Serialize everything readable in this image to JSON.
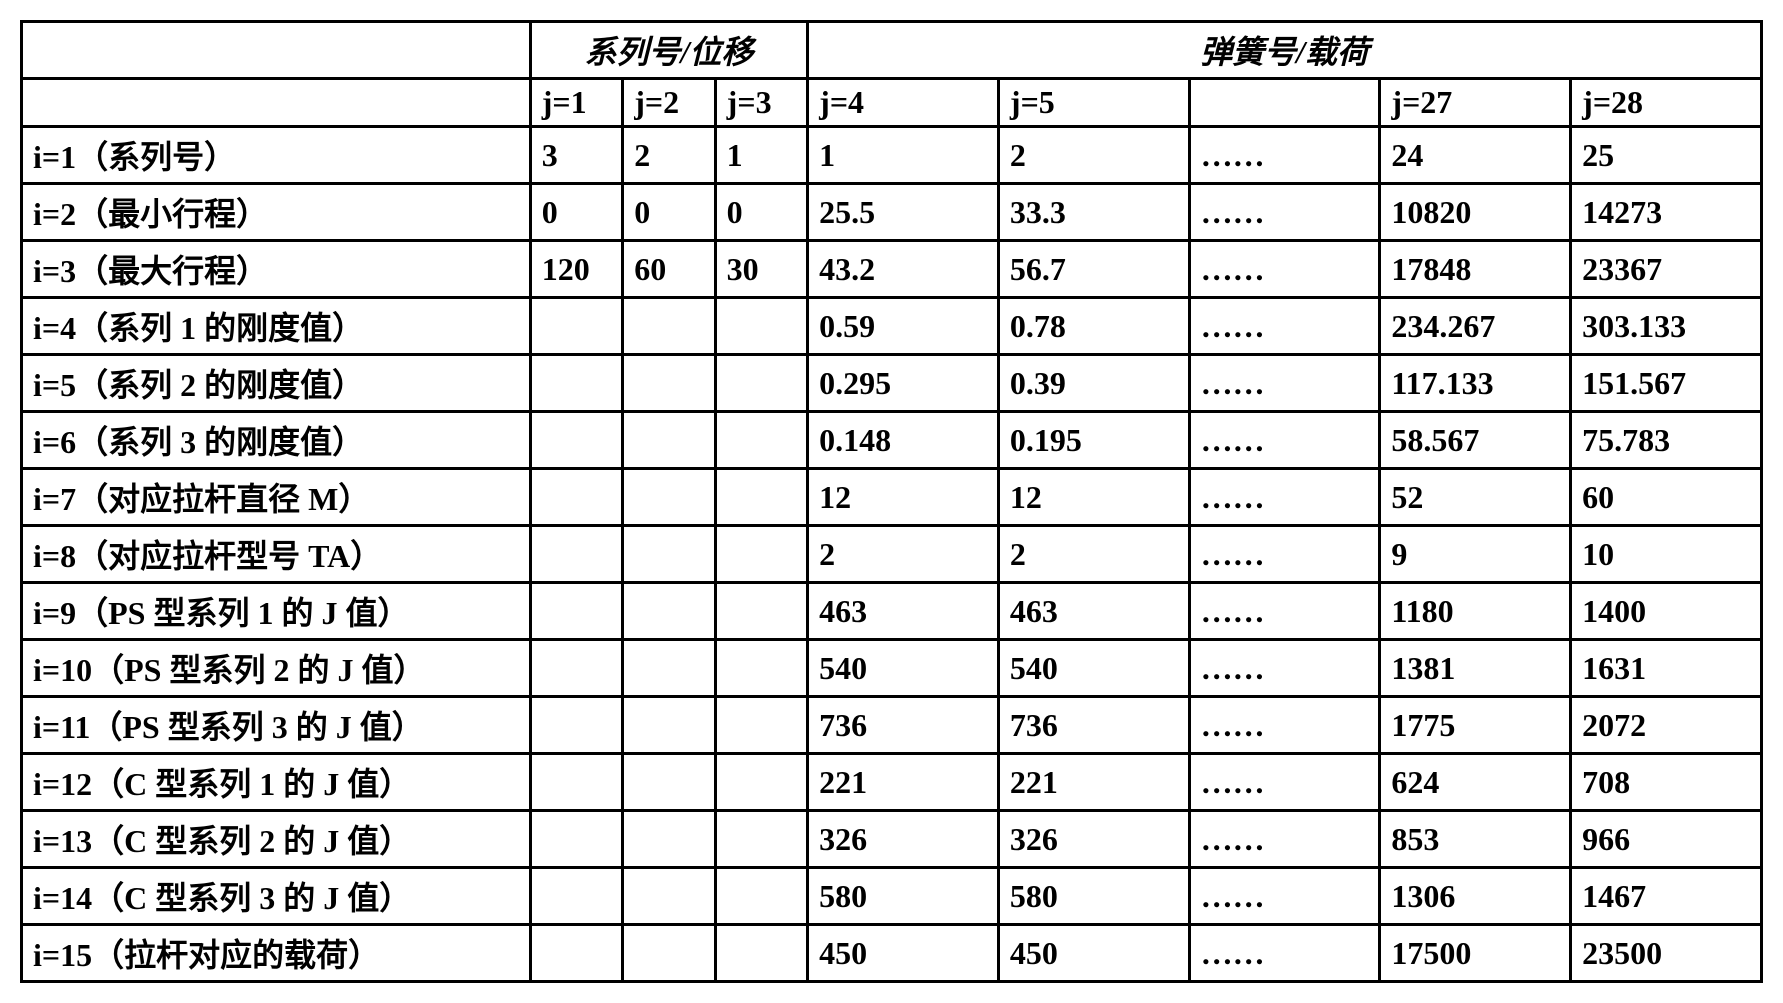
{
  "table": {
    "border_color": "#000000",
    "border_width": 3,
    "background_color": "#ffffff",
    "text_color": "#000000",
    "font_weight": "bold",
    "font_size": 32,
    "header_group_1": "系列号/位移",
    "header_group_2": "弹簧号/载荷",
    "col_headers": {
      "label": "",
      "j1": "j=1",
      "j2": "j=2",
      "j3": "j=3",
      "j4": "j=4",
      "j5": "j=5",
      "ellipsis": "",
      "j27": "j=27",
      "j28": "j=28"
    },
    "rows": [
      {
        "label": "i=1（系列号）",
        "j1": "3",
        "j2": "2",
        "j3": "1",
        "j4": "1",
        "j5": "2",
        "ellipsis": "……",
        "j27": "24",
        "j28": "25"
      },
      {
        "label": "i=2（最小行程）",
        "j1": "0",
        "j2": "0",
        "j3": "0",
        "j4": "25.5",
        "j5": "33.3",
        "ellipsis": "……",
        "j27": "10820",
        "j28": "14273"
      },
      {
        "label": "i=3（最大行程）",
        "j1": "120",
        "j2": "60",
        "j3": "30",
        "j4": "43.2",
        "j5": "56.7",
        "ellipsis": "……",
        "j27": "17848",
        "j28": "23367"
      },
      {
        "label": "i=4（系列 1 的刚度值）",
        "j1": "",
        "j2": "",
        "j3": "",
        "j4": "0.59",
        "j5": "0.78",
        "ellipsis": "……",
        "j27": "234.267",
        "j28": "303.133"
      },
      {
        "label": "i=5（系列 2 的刚度值）",
        "j1": "",
        "j2": "",
        "j3": "",
        "j4": "0.295",
        "j5": "0.39",
        "ellipsis": "……",
        "j27": "117.133",
        "j28": "151.567"
      },
      {
        "label": "i=6（系列 3 的刚度值）",
        "j1": "",
        "j2": "",
        "j3": "",
        "j4": "0.148",
        "j5": "0.195",
        "ellipsis": "……",
        "j27": "58.567",
        "j28": "75.783"
      },
      {
        "label": "i=7（对应拉杆直径 M）",
        "j1": "",
        "j2": "",
        "j3": "",
        "j4": "12",
        "j5": "12",
        "ellipsis": "……",
        "j27": "52",
        "j28": "60"
      },
      {
        "label": "i=8（对应拉杆型号 TA）",
        "j1": "",
        "j2": "",
        "j3": "",
        "j4": "2",
        "j5": "2",
        "ellipsis": "……",
        "j27": "9",
        "j28": "10"
      },
      {
        "label": "i=9（PS 型系列 1 的 J 值）",
        "j1": "",
        "j2": "",
        "j3": "",
        "j4": "463",
        "j5": "463",
        "ellipsis": "……",
        "j27": "1180",
        "j28": "1400"
      },
      {
        "label": "i=10（PS 型系列 2 的 J 值）",
        "j1": "",
        "j2": "",
        "j3": "",
        "j4": "540",
        "j5": "540",
        "ellipsis": "……",
        "j27": "1381",
        "j28": "1631"
      },
      {
        "label": "i=11（PS 型系列 3 的 J 值）",
        "j1": "",
        "j2": "",
        "j3": "",
        "j4": "736",
        "j5": "736",
        "ellipsis": "……",
        "j27": "1775",
        "j28": "2072"
      },
      {
        "label": "i=12（C 型系列 1 的 J 值）",
        "j1": "",
        "j2": "",
        "j3": "",
        "j4": "221",
        "j5": "221",
        "ellipsis": "……",
        "j27": "624",
        "j28": "708"
      },
      {
        "label": "i=13（C 型系列 2 的 J 值）",
        "j1": "",
        "j2": "",
        "j3": "",
        "j4": "326",
        "j5": "326",
        "ellipsis": "……",
        "j27": "853",
        "j28": "966"
      },
      {
        "label": "i=14（C 型系列 3 的 J 值）",
        "j1": "",
        "j2": "",
        "j3": "",
        "j4": "580",
        "j5": "580",
        "ellipsis": "……",
        "j27": "1306",
        "j28": "1467"
      },
      {
        "label": "i=15（拉杆对应的载荷）",
        "j1": "",
        "j2": "",
        "j3": "",
        "j4": "450",
        "j5": "450",
        "ellipsis": "……",
        "j27": "17500",
        "j28": "23500"
      }
    ]
  }
}
